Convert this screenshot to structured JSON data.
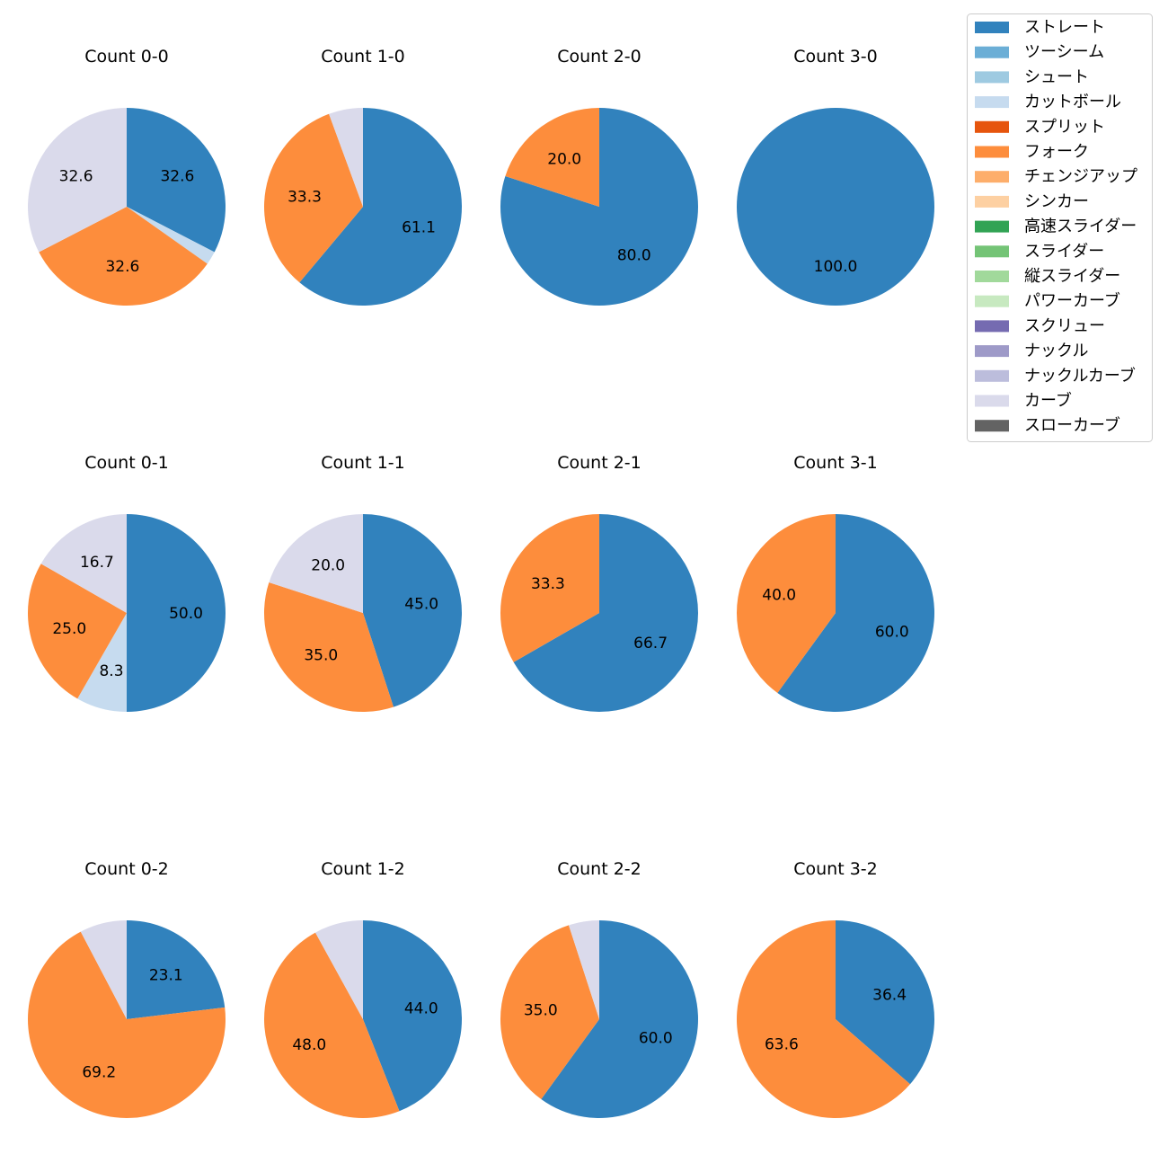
{
  "legend": {
    "entries": [
      {
        "label": "ストレート",
        "color": "#3182bd"
      },
      {
        "label": "ツーシーム",
        "color": "#6baed6"
      },
      {
        "label": "シュート",
        "color": "#9ecae1"
      },
      {
        "label": "カットボール",
        "color": "#c6dbef"
      },
      {
        "label": "スプリット",
        "color": "#e6550d"
      },
      {
        "label": "フォーク",
        "color": "#fd8d3c"
      },
      {
        "label": "チェンジアップ",
        "color": "#fdae6b"
      },
      {
        "label": "シンカー",
        "color": "#fdd0a2"
      },
      {
        "label": "高速スライダー",
        "color": "#31a354"
      },
      {
        "label": "スライダー",
        "color": "#74c476"
      },
      {
        "label": "縦スライダー",
        "color": "#a1d99b"
      },
      {
        "label": "パワーカーブ",
        "color": "#c7e9c0"
      },
      {
        "label": "スクリュー",
        "color": "#756bb1"
      },
      {
        "label": "ナックル",
        "color": "#9e9ac8"
      },
      {
        "label": "ナックルカーブ",
        "color": "#bcbddc"
      },
      {
        "label": "カーブ",
        "color": "#dadaeb"
      },
      {
        "label": "スローカーブ",
        "color": "#636363"
      }
    ]
  },
  "chart_data": [
    {
      "type": "pie",
      "title": "Count 0-0",
      "slices": [
        {
          "category": "ストレート",
          "value": 32.6,
          "label": "32.6"
        },
        {
          "category": "カットボール",
          "value": 2.2,
          "label": ""
        },
        {
          "category": "フォーク",
          "value": 32.6,
          "label": "32.6"
        },
        {
          "category": "カーブ",
          "value": 32.6,
          "label": "32.6"
        }
      ]
    },
    {
      "type": "pie",
      "title": "Count 1-0",
      "slices": [
        {
          "category": "ストレート",
          "value": 61.1,
          "label": "61.1"
        },
        {
          "category": "フォーク",
          "value": 33.3,
          "label": "33.3"
        },
        {
          "category": "カーブ",
          "value": 5.6,
          "label": ""
        }
      ]
    },
    {
      "type": "pie",
      "title": "Count 2-0",
      "slices": [
        {
          "category": "ストレート",
          "value": 80.0,
          "label": "80.0"
        },
        {
          "category": "フォーク",
          "value": 20.0,
          "label": "20.0"
        }
      ]
    },
    {
      "type": "pie",
      "title": "Count 3-0",
      "slices": [
        {
          "category": "ストレート",
          "value": 100.0,
          "label": "100.0"
        }
      ]
    },
    {
      "type": "pie",
      "title": "Count 0-1",
      "slices": [
        {
          "category": "ストレート",
          "value": 50.0,
          "label": "50.0"
        },
        {
          "category": "カットボール",
          "value": 8.3,
          "label": "8.3"
        },
        {
          "category": "フォーク",
          "value": 25.0,
          "label": "25.0"
        },
        {
          "category": "カーブ",
          "value": 16.7,
          "label": "16.7"
        }
      ]
    },
    {
      "type": "pie",
      "title": "Count 1-1",
      "slices": [
        {
          "category": "ストレート",
          "value": 45.0,
          "label": "45.0"
        },
        {
          "category": "フォーク",
          "value": 35.0,
          "label": "35.0"
        },
        {
          "category": "カーブ",
          "value": 20.0,
          "label": "20.0"
        }
      ]
    },
    {
      "type": "pie",
      "title": "Count 2-1",
      "slices": [
        {
          "category": "ストレート",
          "value": 66.7,
          "label": "66.7"
        },
        {
          "category": "フォーク",
          "value": 33.3,
          "label": "33.3"
        }
      ]
    },
    {
      "type": "pie",
      "title": "Count 3-1",
      "slices": [
        {
          "category": "ストレート",
          "value": 60.0,
          "label": "60.0"
        },
        {
          "category": "フォーク",
          "value": 40.0,
          "label": "40.0"
        }
      ]
    },
    {
      "type": "pie",
      "title": "Count 0-2",
      "slices": [
        {
          "category": "ストレート",
          "value": 23.1,
          "label": "23.1"
        },
        {
          "category": "フォーク",
          "value": 69.2,
          "label": "69.2"
        },
        {
          "category": "カーブ",
          "value": 7.7,
          "label": ""
        }
      ]
    },
    {
      "type": "pie",
      "title": "Count 1-2",
      "slices": [
        {
          "category": "ストレート",
          "value": 44.0,
          "label": "44.0"
        },
        {
          "category": "フォーク",
          "value": 48.0,
          "label": "48.0"
        },
        {
          "category": "カーブ",
          "value": 8.0,
          "label": ""
        }
      ]
    },
    {
      "type": "pie",
      "title": "Count 2-2",
      "slices": [
        {
          "category": "ストレート",
          "value": 60.0,
          "label": "60.0"
        },
        {
          "category": "フォーク",
          "value": 35.0,
          "label": "35.0"
        },
        {
          "category": "カーブ",
          "value": 5.0,
          "label": ""
        }
      ]
    },
    {
      "type": "pie",
      "title": "Count 3-2",
      "slices": [
        {
          "category": "ストレート",
          "value": 36.4,
          "label": "36.4"
        },
        {
          "category": "フォーク",
          "value": 63.6,
          "label": "63.6"
        }
      ]
    }
  ]
}
